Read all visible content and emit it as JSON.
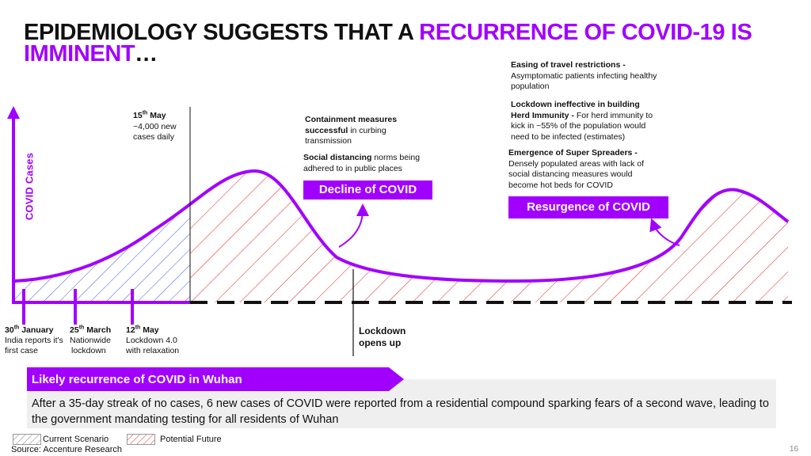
{
  "title": {
    "part1": "EPIDEMIOLOGY SUGGESTS THAT A ",
    "accent": "RECURRENCE OF COVID-19 IS IMMINENT",
    "part2": "…"
  },
  "y_axis_label": "COVID Cases",
  "annotations": {
    "may15": {
      "day": "15",
      "sup": "th",
      "month": " May",
      "line1": "~4,000 new",
      "line2": "cases daily"
    },
    "containment": {
      "bold1": "Containment measures",
      "bold2": "successful",
      "rest": " in curbing",
      "line3": "transmission"
    },
    "social": {
      "bold": "Social distancing",
      "rest": " norms being",
      "line2": "adhered to in public places"
    },
    "decline_label": "Decline of COVID",
    "easing": {
      "bold": "Easing of travel restrictions -",
      "line2": "Asymptomatic patients infecting healthy",
      "line3": "population"
    },
    "herd": {
      "bold1": "Lockdown ineffective in building",
      "bold2": "Herd Immunity -",
      "rest": " For herd immunity to",
      "line3": "kick in ~55% of the population would",
      "line4": "need to be infected (estimates)"
    },
    "super": {
      "bold": "Emergence of Super Spreaders -",
      "line2": "Densely populated areas with lack of",
      "line3": "social distancing measures would",
      "line4": "become hot beds for COVID"
    },
    "resurgence_label": "Resurgence of COVID"
  },
  "events": [
    {
      "day": "30",
      "sup": "th",
      "month": " January",
      "line1": "India reports it's",
      "line2": "first case"
    },
    {
      "day": "25",
      "sup": "th",
      "month": " March",
      "line1": "Nationwide",
      "line2": "lockdown"
    },
    {
      "day": "12",
      "sup": "th",
      "month": " May",
      "line1": "Lockdown 4.0",
      "line2": "with relaxation"
    }
  ],
  "lockdown_opens": {
    "line1": "Lockdown",
    "line2": "opens up"
  },
  "banner": "Likely recurrence of COVID in Wuhan",
  "panel_text": "After a 35-day streak of no cases, 6 new cases of COVID were reported from a residential compound sparking fears of a second wave, leading to the government mandating testing for all residents of Wuhan",
  "legend": {
    "current": "Current Scenario",
    "future": "Potential Future"
  },
  "source": "Source: Accenture Research",
  "page_number": "16",
  "colors": {
    "accent": "#a100ff",
    "current_hatch": "#3b5bd9",
    "future_hatch": "#e02020"
  }
}
